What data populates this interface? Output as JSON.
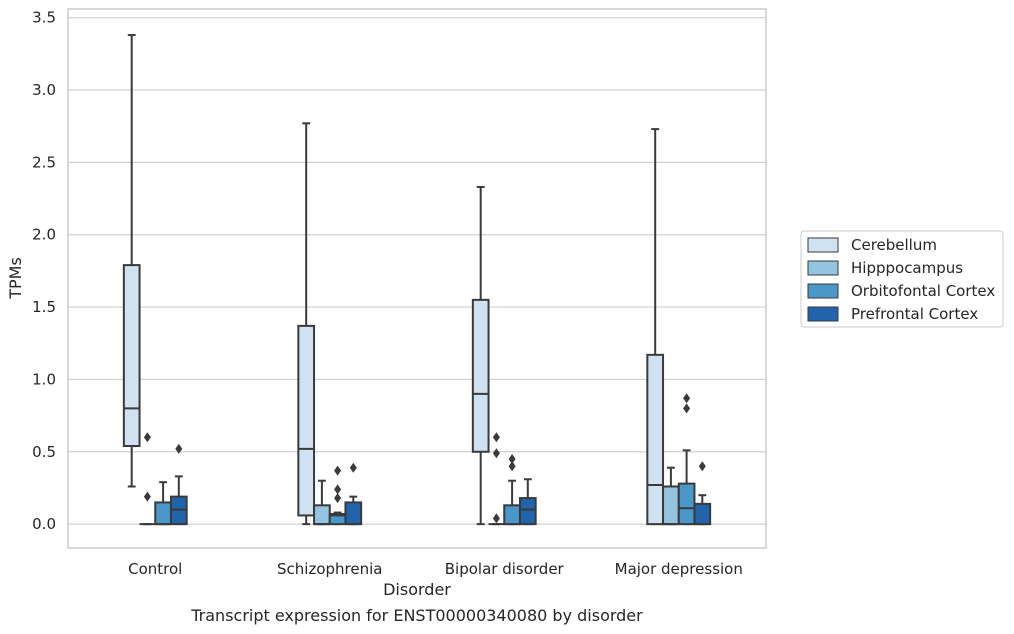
{
  "caption": "Transcript expression for ENST00000340080 by disorder",
  "chart_data": {
    "type": "box",
    "title": "",
    "xlabel": "Disorder",
    "ylabel": "TPMs",
    "ylim": [
      -0.165,
      3.56
    ],
    "yticks": [
      0.0,
      0.5,
      1.0,
      1.5,
      2.0,
      2.5,
      3.0,
      3.5
    ],
    "ytick_labels": [
      "0.0",
      "0.5",
      "1.0",
      "1.5",
      "2.0",
      "2.5",
      "3.0",
      "3.5"
    ],
    "grid": "horizontal",
    "legend_position": "right",
    "categories": [
      "Control",
      "Schizophrenia",
      "Bipolar disorder",
      "Major depression"
    ],
    "series": [
      {
        "name": "Cerebellum",
        "color": "#d0e1f2",
        "boxes": [
          {
            "whislo": 0.26,
            "q1": 0.54,
            "med": 0.8,
            "q3": 1.79,
            "whishi": 3.38,
            "fliers": []
          },
          {
            "whislo": 0.0,
            "q1": 0.06,
            "med": 0.52,
            "q3": 1.37,
            "whishi": 2.77,
            "fliers": []
          },
          {
            "whislo": 0.0,
            "q1": 0.5,
            "med": 0.9,
            "q3": 1.55,
            "whishi": 2.33,
            "fliers": []
          },
          {
            "whislo": 0.0,
            "q1": 0.0,
            "med": 0.27,
            "q3": 1.17,
            "whishi": 2.73,
            "fliers": []
          }
        ]
      },
      {
        "name": "Hipppocampus",
        "color": "#94c4df",
        "boxes": [
          {
            "whislo": 0.0,
            "q1": 0.0,
            "med": 0.0,
            "q3": 0.0,
            "whishi": 0.0,
            "fliers": [
              0.19,
              0.6
            ]
          },
          {
            "whislo": 0.0,
            "q1": 0.0,
            "med": 0.0,
            "q3": 0.13,
            "whishi": 0.3,
            "fliers": []
          },
          {
            "whislo": 0.0,
            "q1": 0.0,
            "med": 0.0,
            "q3": 0.0,
            "whishi": 0.0,
            "fliers": [
              0.04,
              0.49,
              0.6
            ]
          },
          {
            "whislo": 0.0,
            "q1": 0.0,
            "med": 0.0,
            "q3": 0.26,
            "whishi": 0.39,
            "fliers": []
          }
        ]
      },
      {
        "name": "Orbitofontal Cortex",
        "color": "#4a98c9",
        "boxes": [
          {
            "whislo": 0.0,
            "q1": 0.0,
            "med": 0.0,
            "q3": 0.15,
            "whishi": 0.29,
            "fliers": []
          },
          {
            "whislo": 0.0,
            "q1": 0.0,
            "med": 0.06,
            "q3": 0.07,
            "whishi": 0.08,
            "fliers": [
              0.18,
              0.24,
              0.37
            ]
          },
          {
            "whislo": 0.0,
            "q1": 0.0,
            "med": 0.0,
            "q3": 0.13,
            "whishi": 0.3,
            "fliers": [
              0.4,
              0.45
            ]
          },
          {
            "whislo": 0.0,
            "q1": 0.0,
            "med": 0.11,
            "q3": 0.28,
            "whishi": 0.51,
            "fliers": [
              0.8,
              0.87
            ]
          }
        ]
      },
      {
        "name": "Prefrontal Cortex",
        "color": "#2164ab",
        "boxes": [
          {
            "whislo": 0.0,
            "q1": 0.0,
            "med": 0.1,
            "q3": 0.19,
            "whishi": 0.33,
            "fliers": [
              0.52
            ]
          },
          {
            "whislo": 0.0,
            "q1": 0.0,
            "med": 0.0,
            "q3": 0.15,
            "whishi": 0.19,
            "fliers": [
              0.39
            ]
          },
          {
            "whislo": 0.0,
            "q1": 0.0,
            "med": 0.1,
            "q3": 0.18,
            "whishi": 0.31,
            "fliers": []
          },
          {
            "whislo": 0.0,
            "q1": 0.0,
            "med": 0.0,
            "q3": 0.14,
            "whishi": 0.2,
            "fliers": [
              0.4
            ]
          }
        ]
      }
    ]
  }
}
